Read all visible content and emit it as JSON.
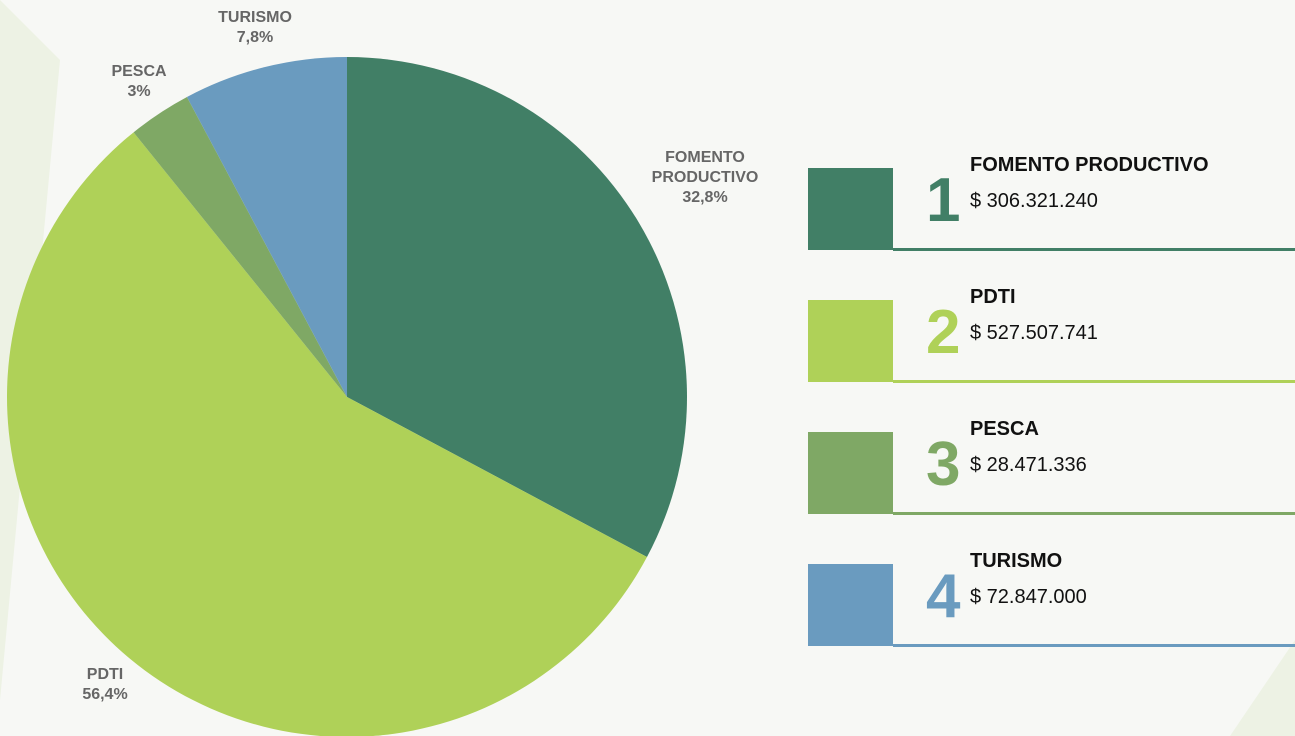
{
  "chart_data": {
    "type": "pie",
    "categories": [
      "FOMENTO PRODUCTIVO",
      "PDTI",
      "PESCA",
      "TURISMO"
    ],
    "values": [
      32.8,
      56.4,
      3,
      7.8
    ],
    "value_labels": [
      "32,8%",
      "56,4%",
      "3%",
      "7,8%"
    ],
    "colors": [
      "#417f66",
      "#afd158",
      "#7fa865",
      "#6a9bbf"
    ],
    "legend": {
      "ranks": [
        1,
        2,
        3,
        4
      ],
      "amounts": [
        "$ 306.321.240",
        "$ 527.507.741",
        "$ 28.471.336",
        "$ 72.847.000"
      ]
    }
  }
}
